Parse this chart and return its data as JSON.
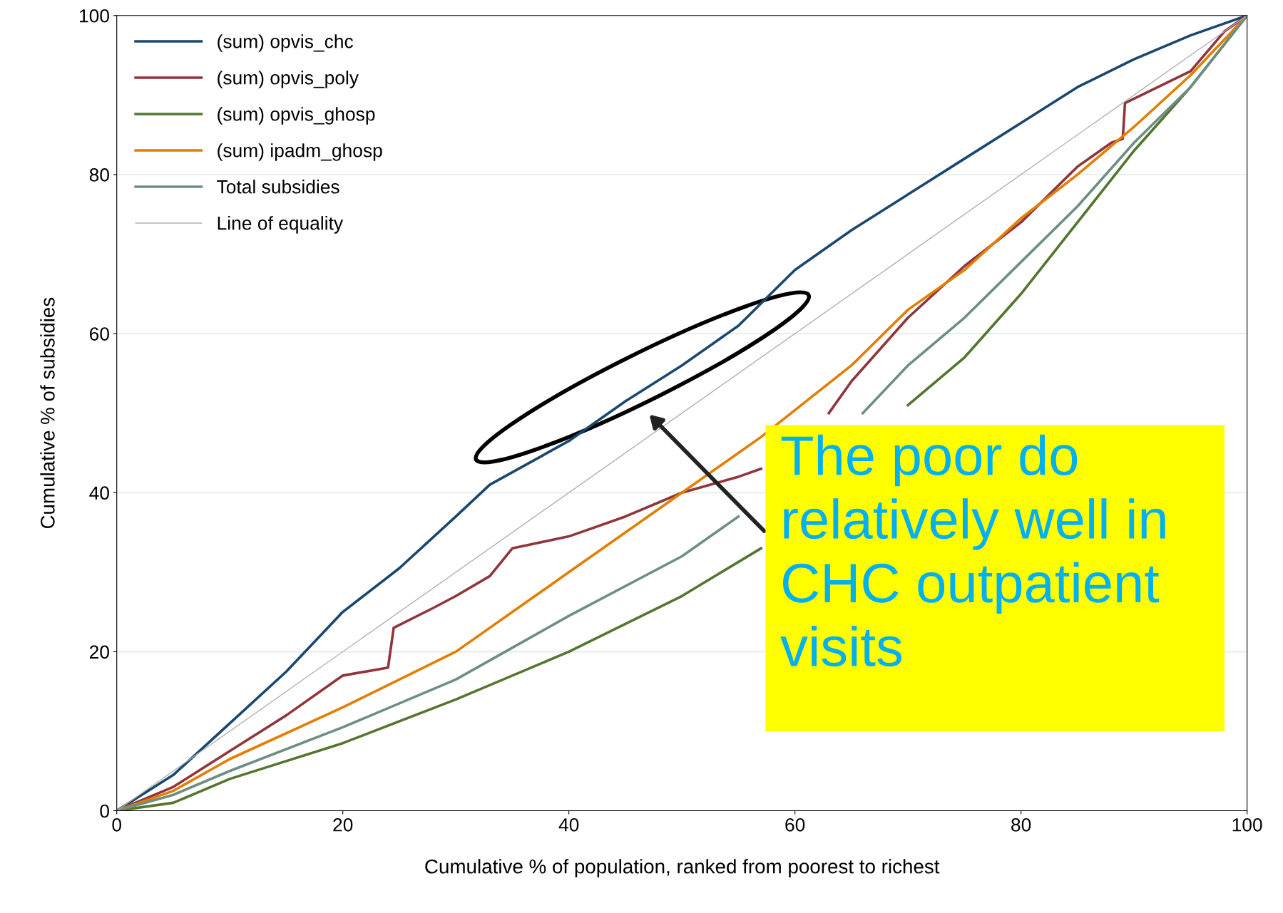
{
  "chart_data": {
    "type": "line",
    "xlabel": "Cumulative % of population, ranked from poorest to richest",
    "ylabel": "Cumulative % of subsidies",
    "xlim": [
      0,
      100
    ],
    "ylim": [
      0,
      100
    ],
    "xticks": [
      0,
      20,
      40,
      60,
      80,
      100
    ],
    "yticks": [
      0,
      20,
      40,
      60,
      80,
      100
    ],
    "grid": "y",
    "legend": "top left",
    "line_style": "solid",
    "marker": "none",
    "series": [
      {
        "name": "(sum) opvis_chc",
        "color": "#1a476f",
        "x": [
          0,
          5,
          10,
          15,
          20,
          25,
          30,
          33,
          40,
          45,
          50,
          55,
          60,
          65,
          70,
          75,
          80,
          85,
          90,
          95,
          100
        ],
        "values": [
          0,
          4.5,
          11,
          17.5,
          25,
          30.5,
          37,
          41,
          46.5,
          51.5,
          56,
          61,
          68,
          73,
          77.5,
          82,
          86.5,
          91,
          94.5,
          97.5,
          100
        ]
      },
      {
        "name": "(sum) opvis_poly",
        "color": "#90353b",
        "x": [
          0,
          5,
          10,
          15,
          20,
          24,
          24.5,
          28,
          30,
          33,
          35,
          40,
          45,
          50,
          55,
          57,
          60,
          63,
          65,
          70,
          75,
          80,
          85,
          88,
          89,
          89.2,
          95,
          98,
          100
        ],
        "values": [
          0,
          3,
          7.5,
          12,
          17,
          18,
          23,
          25.5,
          27,
          29.5,
          33,
          34.5,
          37,
          40,
          42,
          43,
          null,
          50,
          54,
          62,
          68.5,
          74,
          81,
          84,
          84.5,
          89,
          93,
          98,
          100
        ]
      },
      {
        "name": "(sum) opvis_ghosp",
        "color": "#55752f",
        "x": [
          0,
          5,
          10,
          20,
          30,
          40,
          50,
          57,
          60,
          70,
          75,
          80,
          85,
          90,
          95,
          100
        ],
        "values": [
          0,
          1,
          4,
          8.5,
          14,
          20,
          27,
          33,
          null,
          51,
          57,
          65,
          74,
          83,
          91,
          100
        ]
      },
      {
        "name": "(sum) ipadm_ghosp",
        "color": "#e37e00",
        "x": [
          0,
          5,
          10,
          20,
          30,
          40,
          45,
          50,
          55,
          57,
          65,
          70,
          75,
          80,
          85,
          90,
          95,
          100
        ],
        "values": [
          0,
          2.5,
          6.5,
          13,
          20,
          30,
          35,
          40,
          45,
          47,
          56,
          63,
          68,
          74.5,
          80,
          86,
          92.5,
          100
        ]
      },
      {
        "name": "Total subsidies",
        "color": "#6e8e84",
        "x": [
          0,
          5,
          10,
          20,
          30,
          40,
          50,
          55,
          60,
          66,
          70,
          75,
          80,
          85,
          90,
          95,
          100
        ],
        "values": [
          0,
          2,
          5,
          10.5,
          16.5,
          24.5,
          32,
          37,
          null,
          50,
          56,
          62,
          69,
          76,
          84,
          91,
          100
        ]
      },
      {
        "name": "Line of equality",
        "color": "#b0b0b0",
        "x": [
          0,
          100
        ],
        "values": [
          0,
          100
        ]
      }
    ],
    "annotations": [
      "The poor do\nrelatively well in\nCHC outpatient\nvisits"
    ]
  }
}
